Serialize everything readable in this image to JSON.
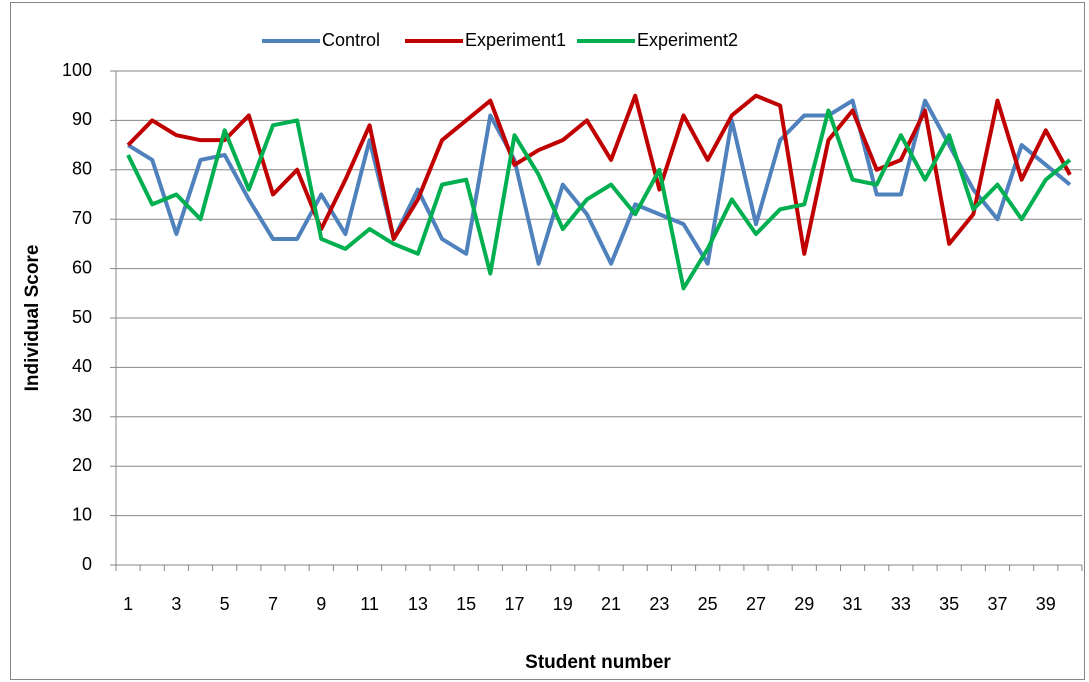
{
  "chart_data": {
    "type": "line",
    "x_label": "Student number",
    "y_label": "Individual  Score",
    "categories": [
      "1",
      null,
      "3",
      null,
      "5",
      null,
      "7",
      null,
      "9",
      null,
      "11",
      null,
      "13",
      null,
      "15",
      null,
      "17",
      null,
      "19",
      null,
      "21",
      null,
      "23",
      null,
      "25",
      null,
      "27",
      null,
      "29",
      null,
      "31",
      null,
      "33",
      null,
      "35",
      null,
      "37",
      null,
      "39",
      null
    ],
    "series": [
      {
        "name": "Control",
        "color": "#4f81bd",
        "values": [
          85,
          82,
          67,
          82,
          83,
          74,
          66,
          66,
          75,
          67,
          86,
          66,
          76,
          66,
          63,
          91,
          82,
          61,
          77,
          71,
          61,
          73,
          71,
          69,
          61,
          90,
          69,
          86,
          91,
          91,
          94,
          75,
          75,
          94,
          85,
          76,
          70,
          85,
          81,
          77
        ]
      },
      {
        "name": "Experiment1",
        "color": "#c00000",
        "values": [
          85,
          90,
          87,
          86,
          86,
          91,
          75,
          80,
          68,
          78,
          89,
          66,
          74,
          86,
          90,
          94,
          81,
          84,
          86,
          90,
          82,
          95,
          76,
          91,
          82,
          91,
          95,
          93,
          63,
          86,
          92,
          80,
          82,
          92,
          65,
          71,
          94,
          78,
          88,
          79
        ]
      },
      {
        "name": "Experiment2",
        "color": "#00b050",
        "values": [
          83,
          73,
          75,
          70,
          88,
          76,
          89,
          90,
          66,
          64,
          68,
          65,
          63,
          77,
          78,
          59,
          87,
          79,
          68,
          74,
          77,
          71,
          80,
          56,
          64,
          74,
          67,
          72,
          73,
          92,
          78,
          77,
          87,
          78,
          87,
          72,
          77,
          70,
          78,
          82
        ]
      }
    ],
    "ylim": [
      0,
      100
    ],
    "yticks": [
      0,
      10,
      20,
      30,
      40,
      50,
      60,
      70,
      80,
      90,
      100
    ],
    "grid": true,
    "legend": "top"
  }
}
